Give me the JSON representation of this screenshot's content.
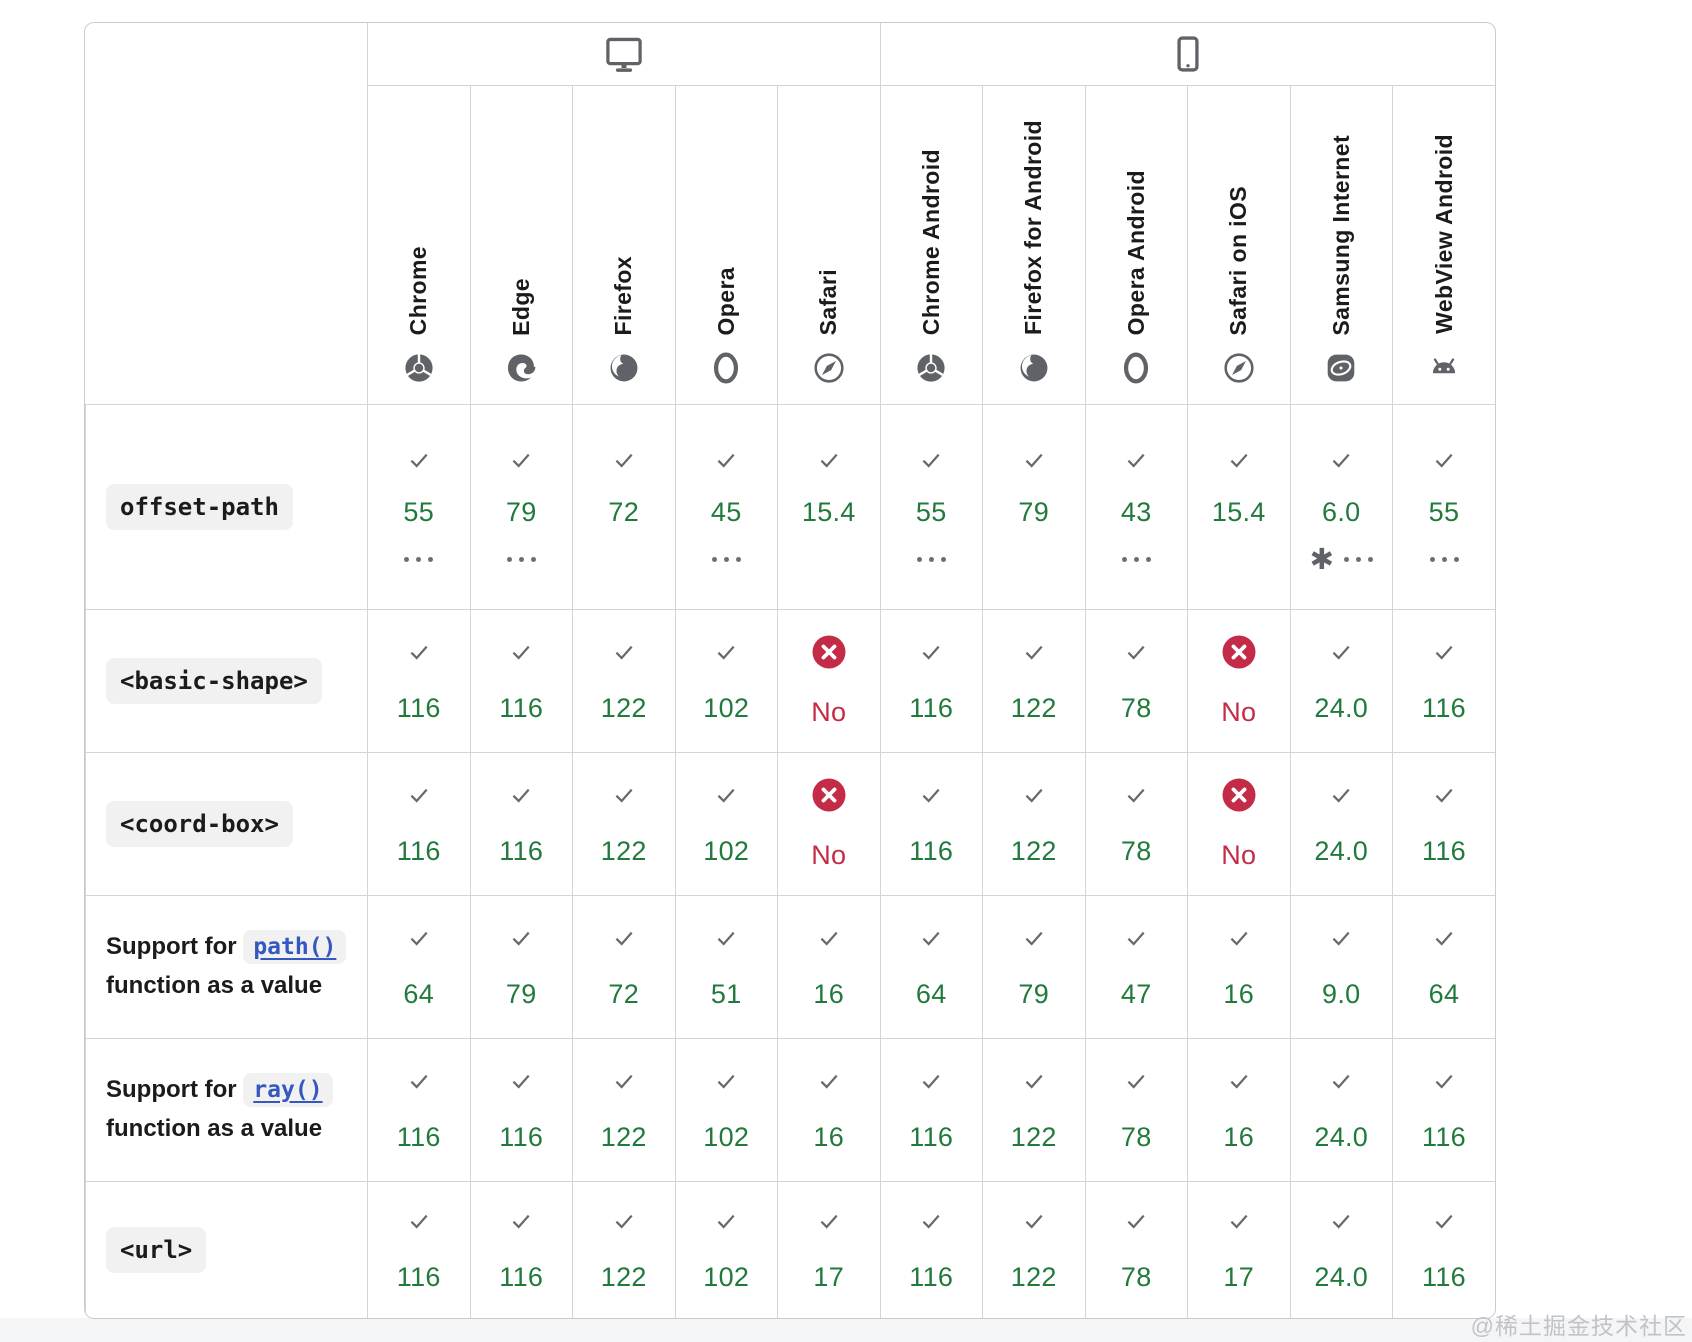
{
  "watermark": "@稀土掘金技术社区",
  "colors": {
    "supported_green": "#217a3c",
    "unsupported_red": "#c32b46",
    "check_gray": "#696969",
    "border_gray": "#d4d4d4",
    "link_blue": "#3457c0",
    "code_bg": "#f1f1f1"
  },
  "header": {
    "groups": [
      {
        "icon": "desktop-icon",
        "span": 5
      },
      {
        "icon": "mobile-icon",
        "span": 6
      }
    ],
    "browsers": [
      {
        "label": "Chrome",
        "icon": "chrome-icon"
      },
      {
        "label": "Edge",
        "icon": "edge-icon"
      },
      {
        "label": "Firefox",
        "icon": "firefox-icon"
      },
      {
        "label": "Opera",
        "icon": "opera-icon"
      },
      {
        "label": "Safari",
        "icon": "safari-icon"
      },
      {
        "label": "Chrome Android",
        "icon": "chrome-icon"
      },
      {
        "label": "Firefox for Android",
        "icon": "firefox-icon"
      },
      {
        "label": "Opera Android",
        "icon": "opera-icon"
      },
      {
        "label": "Safari on iOS",
        "icon": "safari-icon"
      },
      {
        "label": "Samsung Internet",
        "icon": "samsung-internet-icon"
      },
      {
        "label": "WebView Android",
        "icon": "android-icon"
      }
    ]
  },
  "rows": [
    {
      "feature": {
        "type": "code",
        "code": "offset-path"
      },
      "cells": [
        {
          "support": "yes",
          "version": "55",
          "footnote": "dots"
        },
        {
          "support": "yes",
          "version": "79",
          "footnote": "dots"
        },
        {
          "support": "yes",
          "version": "72",
          "footnote": ""
        },
        {
          "support": "yes",
          "version": "45",
          "footnote": "dots"
        },
        {
          "support": "yes",
          "version": "15.4",
          "footnote": ""
        },
        {
          "support": "yes",
          "version": "55",
          "footnote": "dots"
        },
        {
          "support": "yes",
          "version": "79",
          "footnote": ""
        },
        {
          "support": "yes",
          "version": "43",
          "footnote": "dots"
        },
        {
          "support": "yes",
          "version": "15.4",
          "footnote": ""
        },
        {
          "support": "yes",
          "version": "6.0",
          "footnote": "star-dots"
        },
        {
          "support": "yes",
          "version": "55",
          "footnote": "dots"
        }
      ]
    },
    {
      "feature": {
        "type": "code",
        "code": "<basic-shape>"
      },
      "cells": [
        {
          "support": "yes",
          "version": "116",
          "footnote": ""
        },
        {
          "support": "yes",
          "version": "116",
          "footnote": ""
        },
        {
          "support": "yes",
          "version": "122",
          "footnote": ""
        },
        {
          "support": "yes",
          "version": "102",
          "footnote": ""
        },
        {
          "support": "no",
          "version": "No",
          "footnote": ""
        },
        {
          "support": "yes",
          "version": "116",
          "footnote": ""
        },
        {
          "support": "yes",
          "version": "122",
          "footnote": ""
        },
        {
          "support": "yes",
          "version": "78",
          "footnote": ""
        },
        {
          "support": "no",
          "version": "No",
          "footnote": ""
        },
        {
          "support": "yes",
          "version": "24.0",
          "footnote": ""
        },
        {
          "support": "yes",
          "version": "116",
          "footnote": ""
        }
      ]
    },
    {
      "feature": {
        "type": "code",
        "code": "<coord-box>"
      },
      "cells": [
        {
          "support": "yes",
          "version": "116",
          "footnote": ""
        },
        {
          "support": "yes",
          "version": "116",
          "footnote": ""
        },
        {
          "support": "yes",
          "version": "122",
          "footnote": ""
        },
        {
          "support": "yes",
          "version": "102",
          "footnote": ""
        },
        {
          "support": "no",
          "version": "No",
          "footnote": ""
        },
        {
          "support": "yes",
          "version": "116",
          "footnote": ""
        },
        {
          "support": "yes",
          "version": "122",
          "footnote": ""
        },
        {
          "support": "yes",
          "version": "78",
          "footnote": ""
        },
        {
          "support": "no",
          "version": "No",
          "footnote": ""
        },
        {
          "support": "yes",
          "version": "24.0",
          "footnote": ""
        },
        {
          "support": "yes",
          "version": "116",
          "footnote": ""
        }
      ]
    },
    {
      "feature": {
        "type": "link-sentence",
        "prefix": "Support for",
        "link": "path()",
        "suffix": "function as a value"
      },
      "cells": [
        {
          "support": "yes",
          "version": "64",
          "footnote": ""
        },
        {
          "support": "yes",
          "version": "79",
          "footnote": ""
        },
        {
          "support": "yes",
          "version": "72",
          "footnote": ""
        },
        {
          "support": "yes",
          "version": "51",
          "footnote": ""
        },
        {
          "support": "yes",
          "version": "16",
          "footnote": ""
        },
        {
          "support": "yes",
          "version": "64",
          "footnote": ""
        },
        {
          "support": "yes",
          "version": "79",
          "footnote": ""
        },
        {
          "support": "yes",
          "version": "47",
          "footnote": ""
        },
        {
          "support": "yes",
          "version": "16",
          "footnote": ""
        },
        {
          "support": "yes",
          "version": "9.0",
          "footnote": ""
        },
        {
          "support": "yes",
          "version": "64",
          "footnote": ""
        }
      ]
    },
    {
      "feature": {
        "type": "link-sentence",
        "prefix": "Support for",
        "link": "ray()",
        "suffix": "function as a value"
      },
      "cells": [
        {
          "support": "yes",
          "version": "116",
          "footnote": ""
        },
        {
          "support": "yes",
          "version": "116",
          "footnote": ""
        },
        {
          "support": "yes",
          "version": "122",
          "footnote": ""
        },
        {
          "support": "yes",
          "version": "102",
          "footnote": ""
        },
        {
          "support": "yes",
          "version": "16",
          "footnote": ""
        },
        {
          "support": "yes",
          "version": "116",
          "footnote": ""
        },
        {
          "support": "yes",
          "version": "122",
          "footnote": ""
        },
        {
          "support": "yes",
          "version": "78",
          "footnote": ""
        },
        {
          "support": "yes",
          "version": "16",
          "footnote": ""
        },
        {
          "support": "yes",
          "version": "24.0",
          "footnote": ""
        },
        {
          "support": "yes",
          "version": "116",
          "footnote": ""
        }
      ]
    },
    {
      "feature": {
        "type": "code",
        "code": "<url>"
      },
      "cells": [
        {
          "support": "yes",
          "version": "116",
          "footnote": ""
        },
        {
          "support": "yes",
          "version": "116",
          "footnote": ""
        },
        {
          "support": "yes",
          "version": "122",
          "footnote": ""
        },
        {
          "support": "yes",
          "version": "102",
          "footnote": ""
        },
        {
          "support": "yes",
          "version": "17",
          "footnote": ""
        },
        {
          "support": "yes",
          "version": "116",
          "footnote": ""
        },
        {
          "support": "yes",
          "version": "122",
          "footnote": ""
        },
        {
          "support": "yes",
          "version": "78",
          "footnote": ""
        },
        {
          "support": "yes",
          "version": "17",
          "footnote": ""
        },
        {
          "support": "yes",
          "version": "24.0",
          "footnote": ""
        },
        {
          "support": "yes",
          "version": "116",
          "footnote": ""
        }
      ]
    }
  ]
}
